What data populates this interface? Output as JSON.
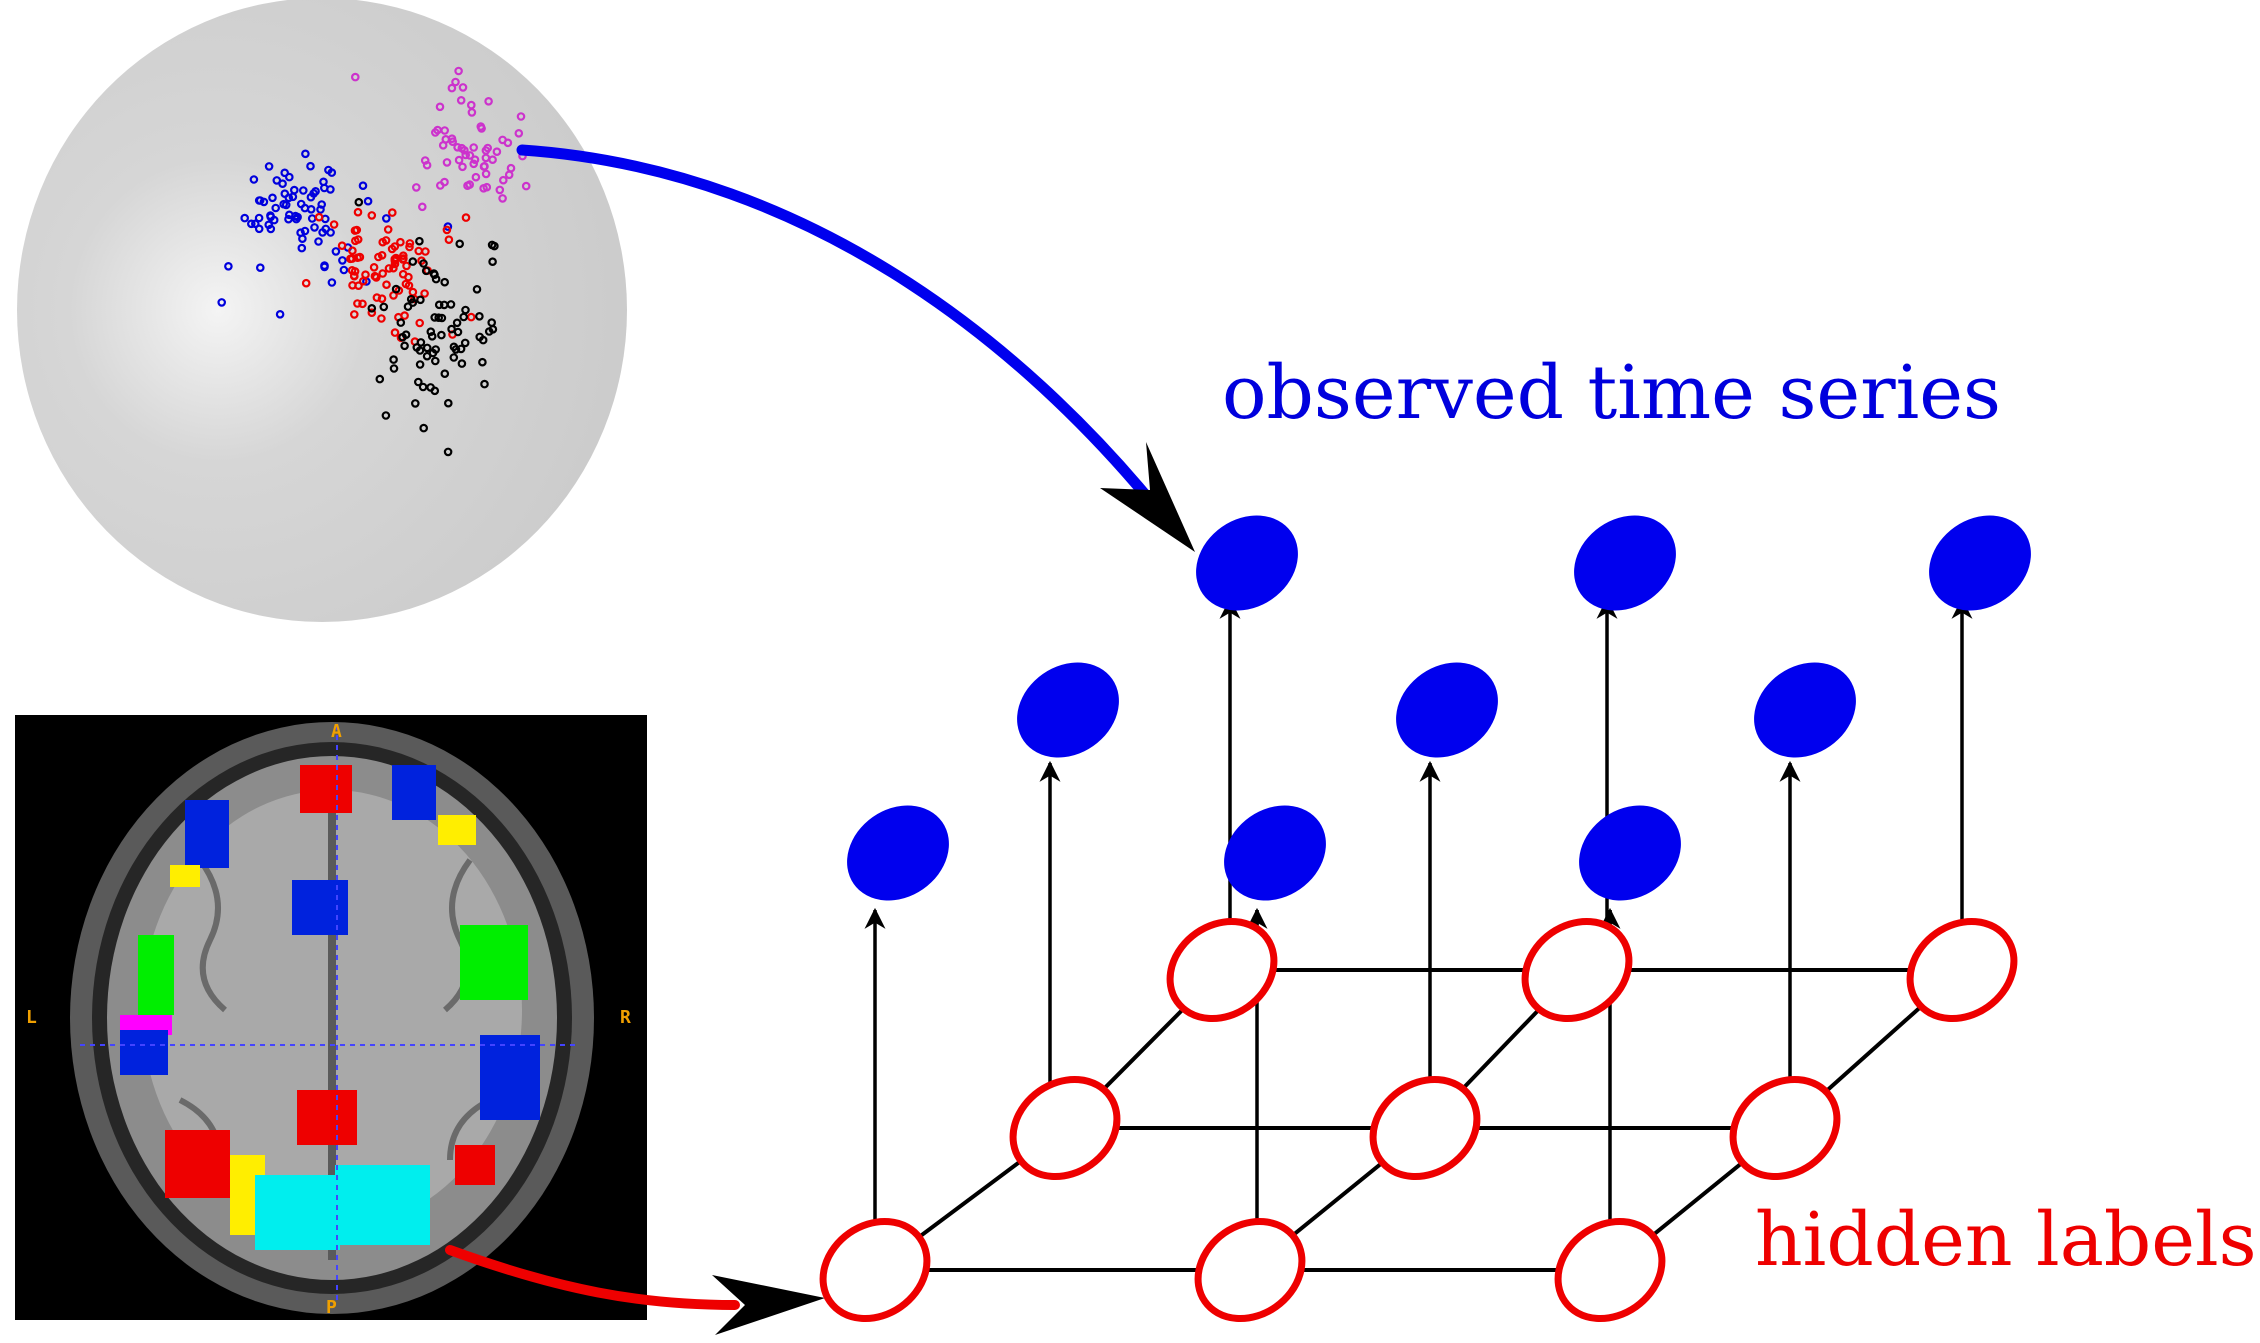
{
  "labels": {
    "observed": "observed time series",
    "hidden": "hidden labels"
  },
  "brain_panel": {
    "orientation": {
      "anterior": "A",
      "posterior": "P",
      "left": "L",
      "right": "R"
    }
  },
  "colors": {
    "observed_node": "#0000ee",
    "hidden_node_stroke": "#ee0000",
    "edge": "#000000",
    "sphere": "#cccccc",
    "clusters": [
      "#0000dd",
      "#ee0000",
      "#000000",
      "#cc33cc"
    ],
    "brain_regions": [
      "#ee0000",
      "#0022dd",
      "#ffee00",
      "#00ee00",
      "#ff00ff",
      "#00eeee"
    ],
    "blue_arrow": "#0000ee",
    "red_arrow": "#ee0000"
  }
}
